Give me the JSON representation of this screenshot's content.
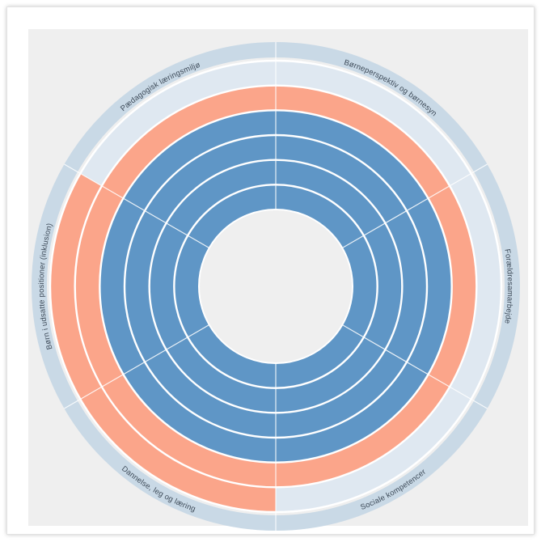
{
  "chart_data": {
    "type": "radial-bar",
    "max_level": 6,
    "segments": [
      {
        "label": "Børneperspektiv og børnesyn",
        "level": 5
      },
      {
        "label": "Forældresamarbejde",
        "level": 5
      },
      {
        "label": "Sociale kompetencer",
        "level": 5
      },
      {
        "label": "Dannelse, leg og læring",
        "level": 6
      },
      {
        "label": "Børn i udsatte positioner (inklusion)",
        "level": 6
      },
      {
        "label": "Pædagogisk læringsmiljø",
        "level": 5
      }
    ],
    "inner_level": 4
  },
  "colors": {
    "panel_bg": "#efefef",
    "outer_band": "#c9d9e6",
    "empty_ring": "#dfe8f1",
    "filled_outer": "#fba58a",
    "filled_inner": "#5f96c6",
    "separator": "#ffffff"
  }
}
